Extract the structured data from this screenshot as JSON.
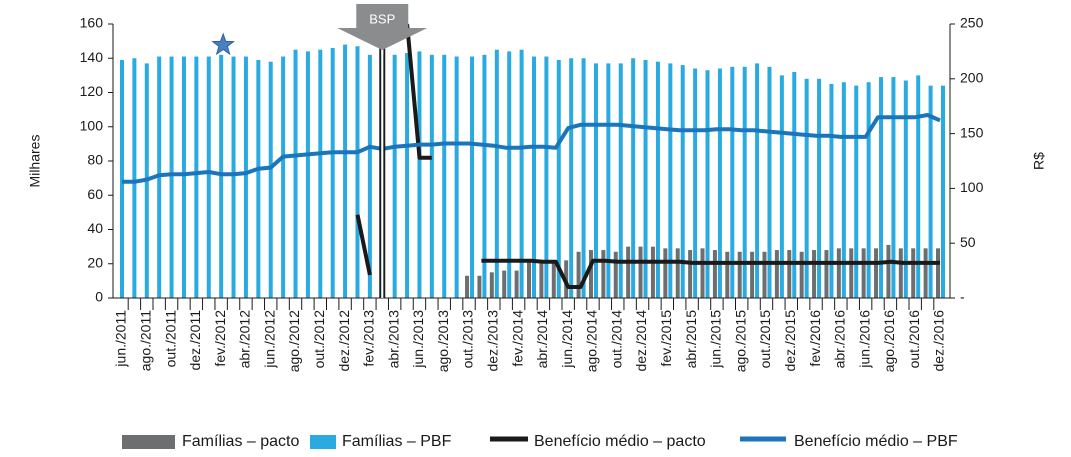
{
  "chart_data": {
    "type": "bar",
    "ylabel": "Milhares",
    "y2label": "R$",
    "annotations": [
      "BSP"
    ],
    "categories": [
      "jun./2011",
      null,
      "ago./2011",
      null,
      "out./2011",
      null,
      "dez./2011",
      null,
      "fev./2012",
      null,
      "abr./2012",
      null,
      "jun./2012",
      null,
      "ago./2012",
      null,
      "out./2012",
      null,
      "dez./2012",
      null,
      "fev./2013",
      null,
      "abr./2013",
      null,
      "jun./2013",
      null,
      "ago./2013",
      null,
      "out./2013",
      null,
      "dez./2013",
      null,
      "fev./2014",
      null,
      "abr./2014",
      null,
      "jun./2014",
      null,
      "ago./2014",
      null,
      "out./2014",
      null,
      "dez./2014",
      null,
      "fev./2015",
      null,
      "abr./2015",
      null,
      "jun./2015",
      null,
      "ago./2015",
      null,
      "out./2015",
      null,
      "dez./2015",
      null,
      "fev./2016",
      null,
      "abr./2016",
      null,
      "jun./2016",
      null,
      "ago./2016",
      null,
      "out./2016",
      null,
      "dez./2016"
    ],
    "series": [
      {
        "name": "Famílias – pacto",
        "color": "#6d6e70",
        "kind": "bar",
        "values": [
          null,
          null,
          null,
          null,
          null,
          null,
          null,
          null,
          null,
          null,
          null,
          null,
          null,
          null,
          null,
          null,
          null,
          null,
          null,
          null,
          null,
          null,
          null,
          null,
          null,
          null,
          null,
          null,
          13,
          13,
          15,
          16,
          16,
          22,
          22,
          21,
          22,
          27,
          28,
          28,
          27,
          30,
          30,
          30,
          29,
          29,
          28,
          29,
          28,
          27,
          27,
          27,
          27,
          28,
          28,
          27,
          28,
          28,
          29,
          29,
          29,
          29,
          31,
          29,
          29,
          29,
          29
        ]
      },
      {
        "name": "Famílias – PBF",
        "color": "#29aae1",
        "kind": "bar",
        "values": [
          139,
          140,
          137,
          141,
          141,
          141,
          141,
          141,
          142,
          141,
          141,
          139,
          138,
          141,
          145,
          144,
          145,
          146,
          148,
          147,
          142,
          142,
          142,
          143,
          144,
          142,
          142,
          141,
          141,
          142,
          145,
          144,
          145,
          141,
          141,
          139,
          140,
          140,
          137,
          137,
          137,
          140,
          139,
          138,
          137,
          136,
          134,
          133,
          134,
          135,
          135,
          137,
          135,
          130,
          132,
          128,
          128,
          125,
          126,
          124,
          126,
          129,
          129,
          127,
          130,
          124,
          124
        ]
      },
      {
        "name": "Benefício médio – pacto",
        "color": "#1a1a1a",
        "kind": "line",
        "axis": "y2",
        "values": [
          null,
          null,
          null,
          null,
          null,
          null,
          null,
          null,
          null,
          null,
          null,
          null,
          null,
          null,
          null,
          null,
          null,
          null,
          null,
          76,
          21,
          null,
          null,
          250,
          128,
          128,
          null,
          null,
          null,
          34,
          34,
          34,
          34,
          34,
          33,
          33,
          10,
          10,
          34,
          34,
          33,
          33,
          33,
          33,
          33,
          33,
          32,
          32,
          32,
          32,
          32,
          32,
          32,
          32,
          32,
          32,
          32,
          32,
          32,
          32,
          32,
          32,
          33,
          32,
          32,
          32,
          32
        ]
      },
      {
        "name": "Benefício médio – PBF",
        "color": "#1b75bb",
        "kind": "line",
        "axis": "y2",
        "values": [
          106,
          106,
          108,
          112,
          113,
          113,
          114,
          115,
          113,
          113,
          114,
          118,
          119,
          129,
          130,
          131,
          132,
          133,
          133,
          133,
          138,
          136,
          138,
          139,
          140,
          140,
          141,
          141,
          141,
          140,
          139,
          137,
          137,
          138,
          138,
          137,
          155,
          158,
          158,
          158,
          158,
          157,
          156,
          155,
          154,
          153,
          153,
          153,
          154,
          154,
          153,
          153,
          152,
          151,
          150,
          149,
          148,
          148,
          147,
          147,
          147,
          165,
          165,
          165,
          165,
          167,
          162
        ]
      }
    ],
    "ylim": [
      0,
      160
    ],
    "yticks": [
      0,
      20,
      40,
      60,
      80,
      100,
      120,
      140,
      160
    ],
    "y2lim": [
      0,
      250
    ],
    "y2ticks": [
      {
        "value": 0,
        "label": "-"
      },
      50,
      100,
      150,
      200,
      250
    ]
  }
}
